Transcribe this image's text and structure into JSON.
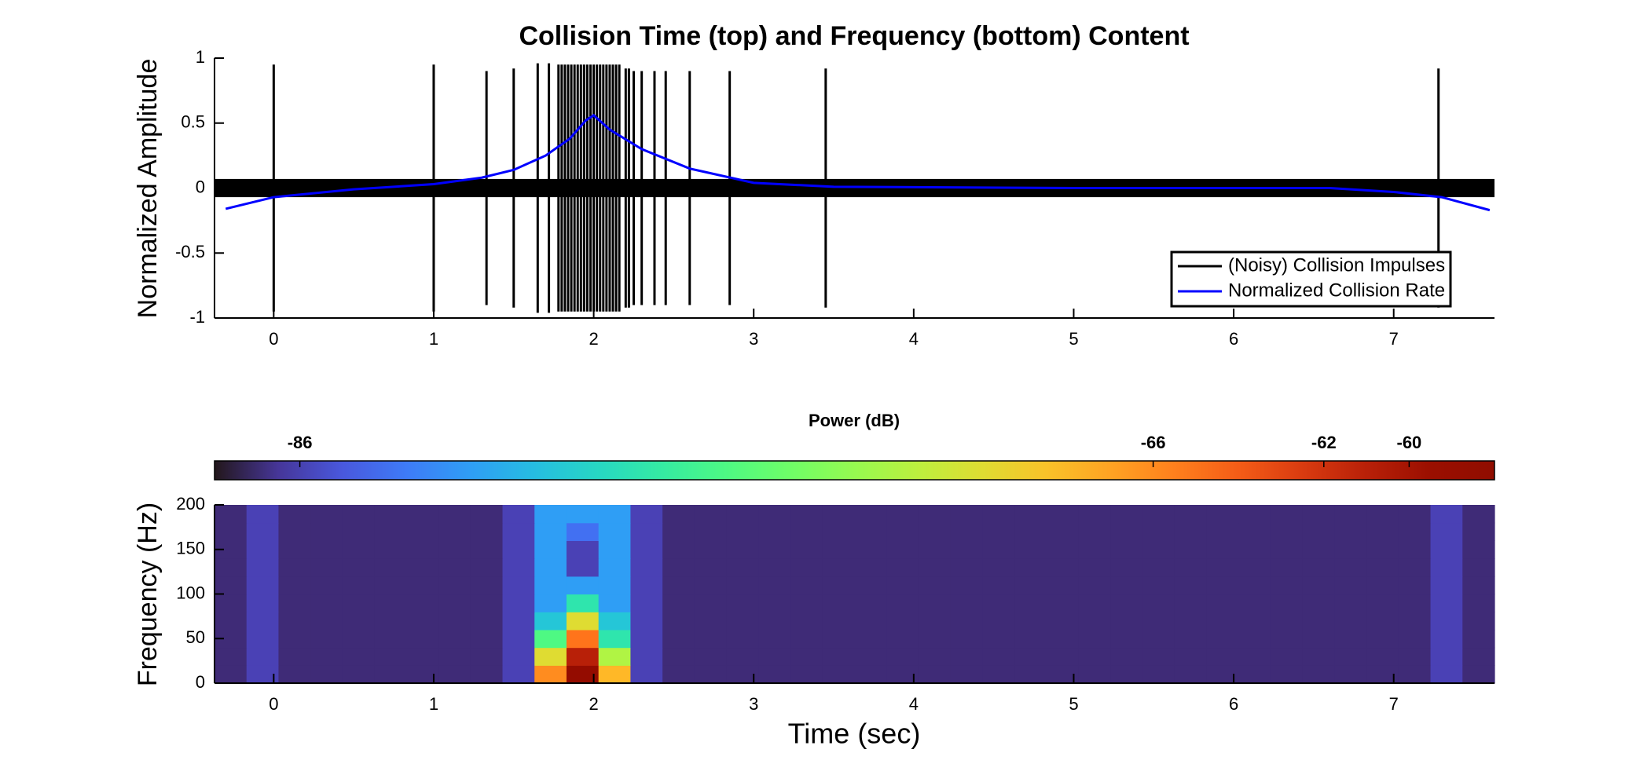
{
  "chart_data": [
    {
      "type": "line",
      "title": "Collision Time (top) and Frequency (bottom) Content",
      "ylabel": "Normalized Amplitude",
      "xlim": [
        -0.37,
        7.63
      ],
      "xticks": [
        0,
        1,
        2,
        3,
        4,
        5,
        6,
        7
      ],
      "ylim": [
        -1,
        1
      ],
      "yticks": [
        -1,
        -0.5,
        0,
        0.5,
        1
      ],
      "legend": "lower right",
      "series": [
        {
          "name": "(Noisy) Collision Impulses",
          "color": "#000000",
          "style": "stem",
          "noise": 0.07,
          "x": [
            0,
            1,
            1.33,
            1.5,
            1.65,
            1.72,
            1.78,
            1.8,
            1.82,
            1.84,
            1.86,
            1.88,
            1.9,
            1.92,
            1.94,
            1.96,
            1.98,
            2.0,
            2.02,
            2.04,
            2.06,
            2.08,
            2.1,
            2.12,
            2.14,
            2.16,
            2.2,
            2.22,
            2.25,
            2.3,
            2.38,
            2.45,
            2.6,
            2.85,
            3.45,
            7.28
          ],
          "values": [
            0.95,
            0.95,
            0.9,
            0.92,
            0.96,
            0.96,
            0.95,
            0.95,
            0.95,
            0.95,
            0.95,
            0.95,
            0.95,
            0.95,
            0.95,
            0.95,
            0.95,
            0.95,
            0.95,
            0.95,
            0.95,
            0.95,
            0.95,
            0.95,
            0.95,
            0.95,
            0.92,
            0.92,
            0.9,
            0.9,
            0.9,
            0.9,
            0.9,
            0.9,
            0.92,
            0.92
          ]
        },
        {
          "name": "Normalized Collision Rate",
          "color": "#0000ff",
          "style": "line",
          "x": [
            -0.3,
            0,
            0.5,
            1,
            1.3,
            1.5,
            1.7,
            1.85,
            1.95,
            2.0,
            2.1,
            2.3,
            2.6,
            3.0,
            3.5,
            5,
            6.6,
            7.0,
            7.3,
            7.6
          ],
          "values": [
            -0.16,
            -0.07,
            -0.01,
            0.03,
            0.08,
            0.14,
            0.25,
            0.38,
            0.52,
            0.56,
            0.45,
            0.3,
            0.15,
            0.04,
            0.01,
            0.0,
            0.0,
            -0.03,
            -0.07,
            -0.17
          ]
        }
      ]
    },
    {
      "type": "heatmap",
      "xlabel": "Time (sec)",
      "ylabel": "Frequency (Hz)",
      "xlim": [
        -0.37,
        7.63
      ],
      "xticks": [
        0,
        1,
        2,
        3,
        4,
        5,
        6,
        7
      ],
      "ylim": [
        0,
        200
      ],
      "yticks": [
        0,
        50,
        100,
        150,
        200
      ],
      "colormap": "turbo",
      "clim": [
        -88,
        -58
      ],
      "colorbar": {
        "label": "Power (dB)",
        "ticks": [
          -86,
          -66,
          -62,
          -60
        ]
      },
      "xbins": [
        -0.37,
        -0.17,
        0.03,
        0.23,
        0.43,
        0.63,
        0.83,
        1.03,
        1.23,
        1.43,
        1.63,
        1.83,
        2.03,
        2.23,
        2.43,
        2.63,
        2.83,
        3.03,
        3.23,
        3.43,
        3.63,
        3.83,
        4.03,
        4.23,
        4.43,
        4.63,
        4.83,
        5.03,
        5.23,
        5.43,
        5.63,
        5.83,
        6.03,
        6.23,
        6.43,
        6.63,
        6.83,
        7.03,
        7.23,
        7.43,
        7.63
      ],
      "ybins": [
        0,
        20,
        40,
        60,
        80,
        100,
        120,
        140,
        160,
        180,
        200
      ],
      "z": [
        [
          -87,
          -86,
          -87,
          -87,
          -87,
          -87,
          -87,
          -87,
          -87,
          -86,
          -66,
          -59,
          -68,
          -86,
          -87,
          -87,
          -87,
          -87,
          -87,
          -87,
          -87,
          -87,
          -87,
          -87,
          -87,
          -87,
          -87,
          -87,
          -87,
          -87,
          -87,
          -87,
          -87,
          -87,
          -87,
          -87,
          -87,
          -87,
          -86,
          -87
        ],
        [
          -87,
          -86,
          -87,
          -87,
          -87,
          -87,
          -87,
          -87,
          -87,
          -86,
          -70,
          -61,
          -72,
          -86,
          -87,
          -87,
          -87,
          -87,
          -87,
          -87,
          -87,
          -87,
          -87,
          -87,
          -87,
          -87,
          -87,
          -87,
          -87,
          -87,
          -87,
          -87,
          -87,
          -87,
          -87,
          -87,
          -87,
          -87,
          -86,
          -87
        ],
        [
          -87,
          -86,
          -87,
          -87,
          -87,
          -87,
          -87,
          -87,
          -87,
          -86,
          -76,
          -65,
          -78,
          -86,
          -87,
          -87,
          -87,
          -87,
          -87,
          -87,
          -87,
          -87,
          -87,
          -87,
          -87,
          -87,
          -87,
          -87,
          -87,
          -87,
          -87,
          -87,
          -87,
          -87,
          -87,
          -87,
          -87,
          -87,
          -86,
          -87
        ],
        [
          -87,
          -86,
          -87,
          -87,
          -87,
          -87,
          -87,
          -87,
          -87,
          -86,
          -80,
          -70,
          -80,
          -86,
          -87,
          -87,
          -87,
          -87,
          -87,
          -87,
          -87,
          -87,
          -87,
          -87,
          -87,
          -87,
          -87,
          -87,
          -87,
          -87,
          -87,
          -87,
          -87,
          -87,
          -87,
          -87,
          -87,
          -87,
          -86,
          -87
        ],
        [
          -87,
          -86,
          -87,
          -87,
          -87,
          -87,
          -87,
          -87,
          -87,
          -86,
          -82,
          -78,
          -82,
          -86,
          -87,
          -87,
          -87,
          -87,
          -87,
          -87,
          -87,
          -87,
          -87,
          -87,
          -87,
          -87,
          -87,
          -87,
          -87,
          -87,
          -87,
          -87,
          -87,
          -87,
          -87,
          -87,
          -87,
          -87,
          -86,
          -87
        ],
        [
          -87,
          -86,
          -87,
          -87,
          -87,
          -87,
          -87,
          -87,
          -87,
          -86,
          -82,
          -82,
          -82,
          -86,
          -87,
          -87,
          -87,
          -87,
          -87,
          -87,
          -87,
          -87,
          -87,
          -87,
          -87,
          -87,
          -87,
          -87,
          -87,
          -87,
          -87,
          -87,
          -87,
          -87,
          -87,
          -87,
          -87,
          -87,
          -86,
          -87
        ],
        [
          -87,
          -86,
          -87,
          -87,
          -87,
          -87,
          -87,
          -87,
          -87,
          -86,
          -82,
          -86,
          -82,
          -86,
          -87,
          -87,
          -87,
          -87,
          -87,
          -87,
          -87,
          -87,
          -87,
          -87,
          -87,
          -87,
          -87,
          -87,
          -87,
          -87,
          -87,
          -87,
          -87,
          -87,
          -87,
          -87,
          -87,
          -87,
          -86,
          -87
        ],
        [
          -87,
          -86,
          -87,
          -87,
          -87,
          -87,
          -87,
          -87,
          -87,
          -86,
          -82,
          -86,
          -82,
          -86,
          -87,
          -87,
          -87,
          -87,
          -87,
          -87,
          -87,
          -87,
          -87,
          -87,
          -87,
          -87,
          -87,
          -87,
          -87,
          -87,
          -87,
          -87,
          -87,
          -87,
          -87,
          -87,
          -87,
          -87,
          -86,
          -87
        ],
        [
          -87,
          -86,
          -87,
          -87,
          -87,
          -87,
          -87,
          -87,
          -87,
          -86,
          -82,
          -84,
          -82,
          -86,
          -87,
          -87,
          -87,
          -87,
          -87,
          -87,
          -87,
          -87,
          -87,
          -87,
          -87,
          -87,
          -87,
          -87,
          -87,
          -87,
          -87,
          -87,
          -87,
          -87,
          -87,
          -87,
          -87,
          -87,
          -86,
          -87
        ],
        [
          -87,
          -86,
          -87,
          -87,
          -87,
          -87,
          -87,
          -87,
          -87,
          -86,
          -82,
          -82,
          -82,
          -86,
          -87,
          -87,
          -87,
          -87,
          -87,
          -87,
          -87,
          -87,
          -87,
          -87,
          -87,
          -87,
          -87,
          -87,
          -87,
          -87,
          -87,
          -87,
          -87,
          -87,
          -87,
          -87,
          -87,
          -87,
          -86,
          -87
        ]
      ]
    }
  ]
}
